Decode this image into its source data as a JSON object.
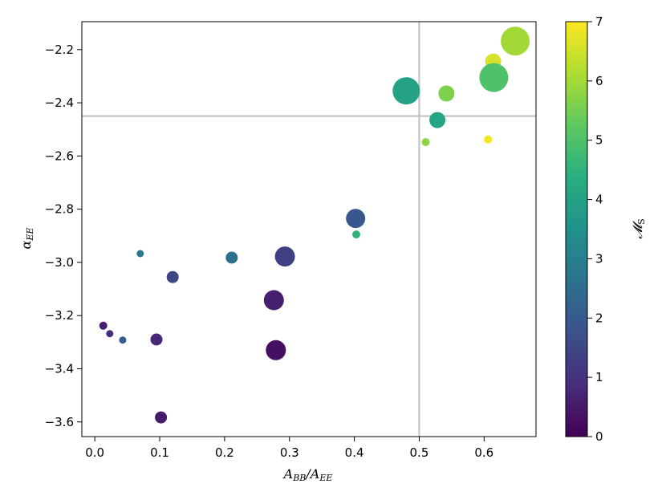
{
  "chart_data": {
    "type": "scatter",
    "xlabel": "A_BB/A_EE",
    "ylabel": "α_EE",
    "xlim": [
      -0.02,
      0.68
    ],
    "ylim": [
      -3.655,
      -2.095
    ],
    "xticks": [
      "0.0",
      "0.1",
      "0.2",
      "0.3",
      "0.4",
      "0.5",
      "0.6"
    ],
    "yticks": [
      "−3.6",
      "−3.4",
      "−3.2",
      "−3.0",
      "−2.8",
      "−2.6",
      "−2.4",
      "−2.2"
    ],
    "colorbar": {
      "label": "𝓜_S",
      "range": [
        0,
        7
      ],
      "ticks": [
        "0",
        "1",
        "2",
        "3",
        "4",
        "5",
        "6",
        "7"
      ],
      "colormap": "viridis"
    },
    "reference_lines": {
      "vertical_x": 0.5,
      "horizontal_y": -2.45,
      "color": "#bfbfbf"
    },
    "points": [
      {
        "x": 0.013,
        "y": -3.238,
        "m": 0.6,
        "size": 5
      },
      {
        "x": 0.023,
        "y": -3.268,
        "m": 0.9,
        "size": 4.5
      },
      {
        "x": 0.043,
        "y": -3.292,
        "m": 2.0,
        "size": 4.5
      },
      {
        "x": 0.07,
        "y": -2.967,
        "m": 2.8,
        "size": 4.5
      },
      {
        "x": 0.095,
        "y": -3.29,
        "m": 0.8,
        "size": 7.5
      },
      {
        "x": 0.102,
        "y": -3.583,
        "m": 0.5,
        "size": 7.5
      },
      {
        "x": 0.12,
        "y": -3.055,
        "m": 1.5,
        "size": 7.5
      },
      {
        "x": 0.211,
        "y": -2.982,
        "m": 2.6,
        "size": 7.5
      },
      {
        "x": 0.276,
        "y": -3.142,
        "m": 0.6,
        "size": 12.5
      },
      {
        "x": 0.279,
        "y": -3.33,
        "m": 0.3,
        "size": 12.5
      },
      {
        "x": 0.293,
        "y": -2.978,
        "m": 1.3,
        "size": 12.5
      },
      {
        "x": 0.402,
        "y": -2.835,
        "m": 1.9,
        "size": 12
      },
      {
        "x": 0.403,
        "y": -2.895,
        "m": 4.5,
        "size": 5
      },
      {
        "x": 0.48,
        "y": -2.355,
        "m": 4.0,
        "size": 17
      },
      {
        "x": 0.51,
        "y": -2.548,
        "m": 5.8,
        "size": 5
      },
      {
        "x": 0.528,
        "y": -2.465,
        "m": 4.1,
        "size": 10
      },
      {
        "x": 0.542,
        "y": -2.365,
        "m": 5.6,
        "size": 10
      },
      {
        "x": 0.606,
        "y": -2.538,
        "m": 6.9,
        "size": 5
      },
      {
        "x": 0.614,
        "y": -2.245,
        "m": 6.6,
        "size": 10
      },
      {
        "x": 0.615,
        "y": -2.305,
        "m": 5.0,
        "size": 18
      },
      {
        "x": 0.648,
        "y": -2.168,
        "m": 6.0,
        "size": 18
      }
    ]
  }
}
